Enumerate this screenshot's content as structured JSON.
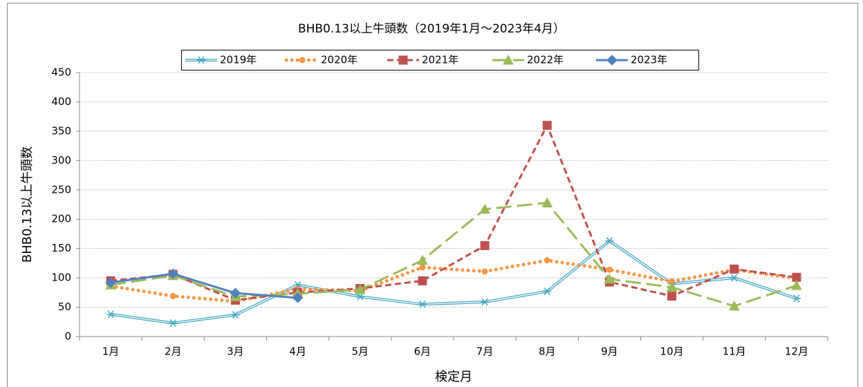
{
  "chart_data": {
    "type": "line",
    "title": "BHB0.13以上牛頭数（2019年1月～2023年4月）",
    "y_label": "BHB0.13以上牛頭数",
    "x_label": "検定月",
    "categories": [
      "1月",
      "2月",
      "3月",
      "4月",
      "5月",
      "6月",
      "7月",
      "8月",
      "9月",
      "10月",
      "11月",
      "12月"
    ],
    "ylim": [
      0,
      450
    ],
    "yticks": [
      0,
      50,
      100,
      150,
      200,
      250,
      300,
      350,
      400,
      450
    ],
    "grid": true,
    "legend": "top",
    "series": [
      {
        "name": "2019年",
        "color": "#4bacc6",
        "marker": "asterisk",
        "dash": "double",
        "values": [
          38,
          23,
          37,
          88,
          68,
          55,
          59,
          77,
          163,
          90,
          100,
          65
        ]
      },
      {
        "name": "2020年",
        "color": "#f79646",
        "marker": "circle",
        "dash": "dot",
        "values": [
          86,
          69,
          60,
          81,
          78,
          118,
          111,
          130,
          114,
          94,
          114,
          99
        ]
      },
      {
        "name": "2021年",
        "color": "#c0504d",
        "marker": "square",
        "dash": "dash",
        "values": [
          95,
          106,
          62,
          75,
          82,
          95,
          155,
          360,
          93,
          69,
          115,
          101
        ]
      },
      {
        "name": "2022年",
        "color": "#9bbb59",
        "marker": "triangle",
        "dash": "longdash",
        "values": [
          88,
          104,
          68,
          73,
          80,
          130,
          217,
          228,
          98,
          84,
          52,
          87
        ]
      },
      {
        "name": "2023年",
        "color": "#4f81bd",
        "marker": "diamond",
        "dash": "solid",
        "values": [
          92,
          107,
          74,
          66,
          null,
          null,
          null,
          null,
          null,
          null,
          null,
          null
        ]
      }
    ]
  }
}
